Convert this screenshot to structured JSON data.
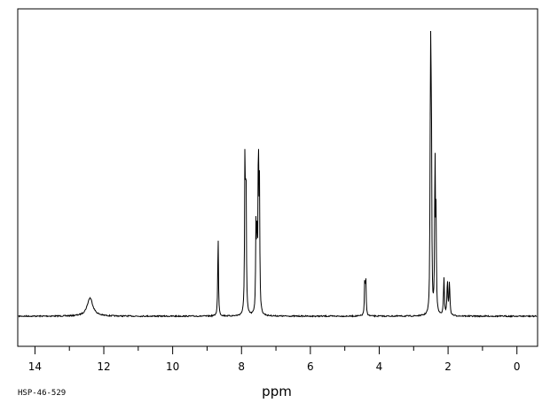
{
  "chart_data": {
    "type": "line",
    "title": "",
    "xlabel": "ppm",
    "ylabel": "",
    "xlim": [
      14.5,
      -0.6
    ],
    "x_reversed": true,
    "grid": false,
    "tick_labels": [
      "14",
      "12",
      "10",
      "8",
      "6",
      "4",
      "2",
      "0"
    ],
    "tick_values": [
      14,
      12,
      10,
      8,
      6,
      4,
      2,
      0
    ],
    "minor_tick_step": 1,
    "sample_code": "HSP-46-529",
    "baseline_intensity": 0,
    "series": [
      {
        "peaks": [
          {
            "ppm": 12.4,
            "intensity": 0.065,
            "width": 0.1
          },
          {
            "ppm": 8.68,
            "intensity": 0.29,
            "width": 0.012
          },
          {
            "ppm": 7.9,
            "intensity": 0.58,
            "width": 0.012
          },
          {
            "ppm": 7.87,
            "intensity": 0.5,
            "width": 0.012
          },
          {
            "ppm": 7.58,
            "intensity": 0.3,
            "width": 0.012
          },
          {
            "ppm": 7.55,
            "intensity": 0.28,
            "width": 0.012
          },
          {
            "ppm": 7.51,
            "intensity": 0.6,
            "width": 0.012
          },
          {
            "ppm": 7.48,
            "intensity": 0.44,
            "width": 0.012
          },
          {
            "ppm": 4.42,
            "intensity": 0.13,
            "width": 0.012
          },
          {
            "ppm": 4.39,
            "intensity": 0.13,
            "width": 0.012
          },
          {
            "ppm": 2.52,
            "intensity": 0.46,
            "width": 0.01
          },
          {
            "ppm": 2.5,
            "intensity": 1.0,
            "width": 0.01
          },
          {
            "ppm": 2.48,
            "intensity": 0.46,
            "width": 0.01
          },
          {
            "ppm": 2.38,
            "intensity": 0.56,
            "width": 0.012
          },
          {
            "ppm": 2.35,
            "intensity": 0.33,
            "width": 0.012
          },
          {
            "ppm": 2.12,
            "intensity": 0.13,
            "width": 0.015
          },
          {
            "ppm": 2.02,
            "intensity": 0.12,
            "width": 0.015
          },
          {
            "ppm": 1.96,
            "intensity": 0.12,
            "width": 0.015
          }
        ]
      }
    ]
  }
}
